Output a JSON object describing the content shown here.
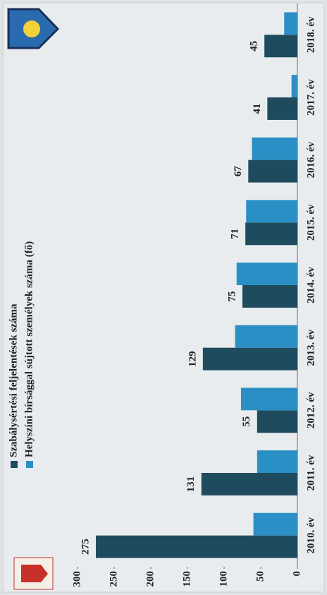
{
  "chart_data": {
    "type": "bar",
    "categories": [
      "2010. év",
      "2011. év",
      "2012. év",
      "2013. év",
      "2014. év",
      "2015. év",
      "2016. év",
      "2017. év",
      "2018. év"
    ],
    "series": [
      {
        "name": "Szabálysértési feljelentések száma",
        "color": "#1f4b5f",
        "values": [
          275,
          131,
          55,
          129,
          75,
          71,
          67,
          41,
          45
        ]
      },
      {
        "name": "Helyszíni bírsággal sújtott személyek száma (fő)",
        "color": "#2a8fc4",
        "values": [
          60,
          55,
          77,
          85,
          83,
          70,
          62,
          8,
          18
        ]
      }
    ],
    "ylim": [
      0,
      300
    ],
    "yticks": [
      0,
      50,
      100,
      150,
      200,
      250,
      300
    ],
    "grid": false
  }
}
